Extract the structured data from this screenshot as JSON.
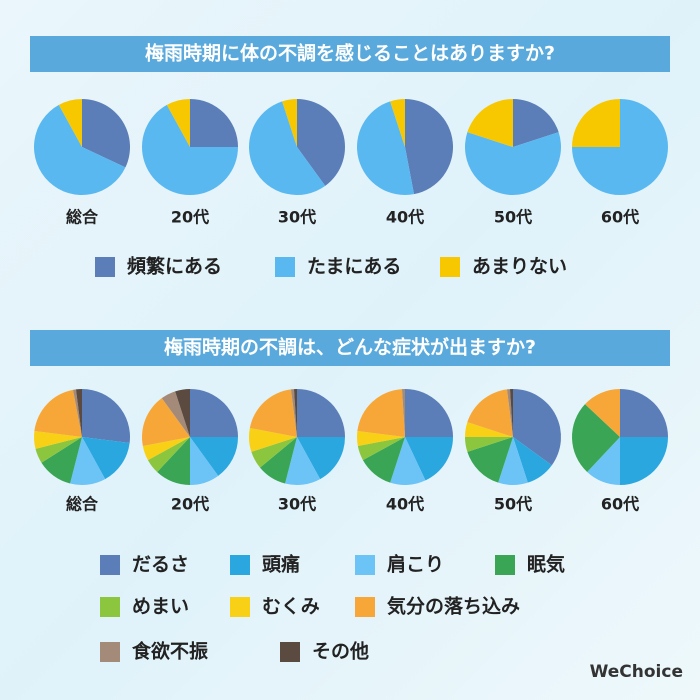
{
  "chart_data": [
    {
      "type": "pie",
      "title": "梅雨時期に体の不調を感じることはありますか?",
      "groups": [
        "総合",
        "20代",
        "30代",
        "40代",
        "50代",
        "60代"
      ],
      "series": [
        {
          "name": "頻繁にある",
          "color": "#5b7db8",
          "values": [
            32,
            25,
            40,
            47,
            20,
            0
          ]
        },
        {
          "name": "たまにある",
          "color": "#5ab8f0",
          "values": [
            60,
            67,
            55,
            48,
            60,
            75
          ]
        },
        {
          "name": "あまりない",
          "color": "#f7c800",
          "values": [
            8,
            8,
            5,
            5,
            20,
            25
          ]
        }
      ]
    },
    {
      "type": "pie",
      "title": "梅雨時期の不調は、どんな症状が出ますか?",
      "groups": [
        "総合",
        "20代",
        "30代",
        "40代",
        "50代",
        "60代"
      ],
      "series": [
        {
          "name": "だるさ",
          "color": "#5b7db8",
          "values": [
            27,
            25,
            25,
            25,
            35,
            25
          ]
        },
        {
          "name": "頭痛",
          "color": "#2ba7e0",
          "values": [
            15,
            15,
            17,
            18,
            10,
            25
          ]
        },
        {
          "name": "肩こり",
          "color": "#6cc3f5",
          "values": [
            12,
            10,
            12,
            12,
            10,
            12
          ]
        },
        {
          "name": "眠気",
          "color": "#3aa655",
          "values": [
            12,
            12,
            10,
            12,
            15,
            25
          ]
        },
        {
          "name": "めまい",
          "color": "#8cc63f",
          "values": [
            5,
            5,
            6,
            5,
            5,
            0
          ]
        },
        {
          "name": "むくみ",
          "color": "#f8d117",
          "values": [
            6,
            5,
            8,
            5,
            5,
            0
          ]
        },
        {
          "name": "気分の落ち込み",
          "color": "#f7a738",
          "values": [
            20,
            18,
            20,
            22,
            18,
            13
          ]
        },
        {
          "name": "食欲不振",
          "color": "#a48a78",
          "values": [
            1,
            5,
            1,
            1,
            1,
            0
          ]
        },
        {
          "name": "その他",
          "color": "#5a4a40",
          "values": [
            2,
            5,
            1,
            0,
            1,
            0
          ]
        }
      ]
    }
  ],
  "brand": "WeChoice"
}
